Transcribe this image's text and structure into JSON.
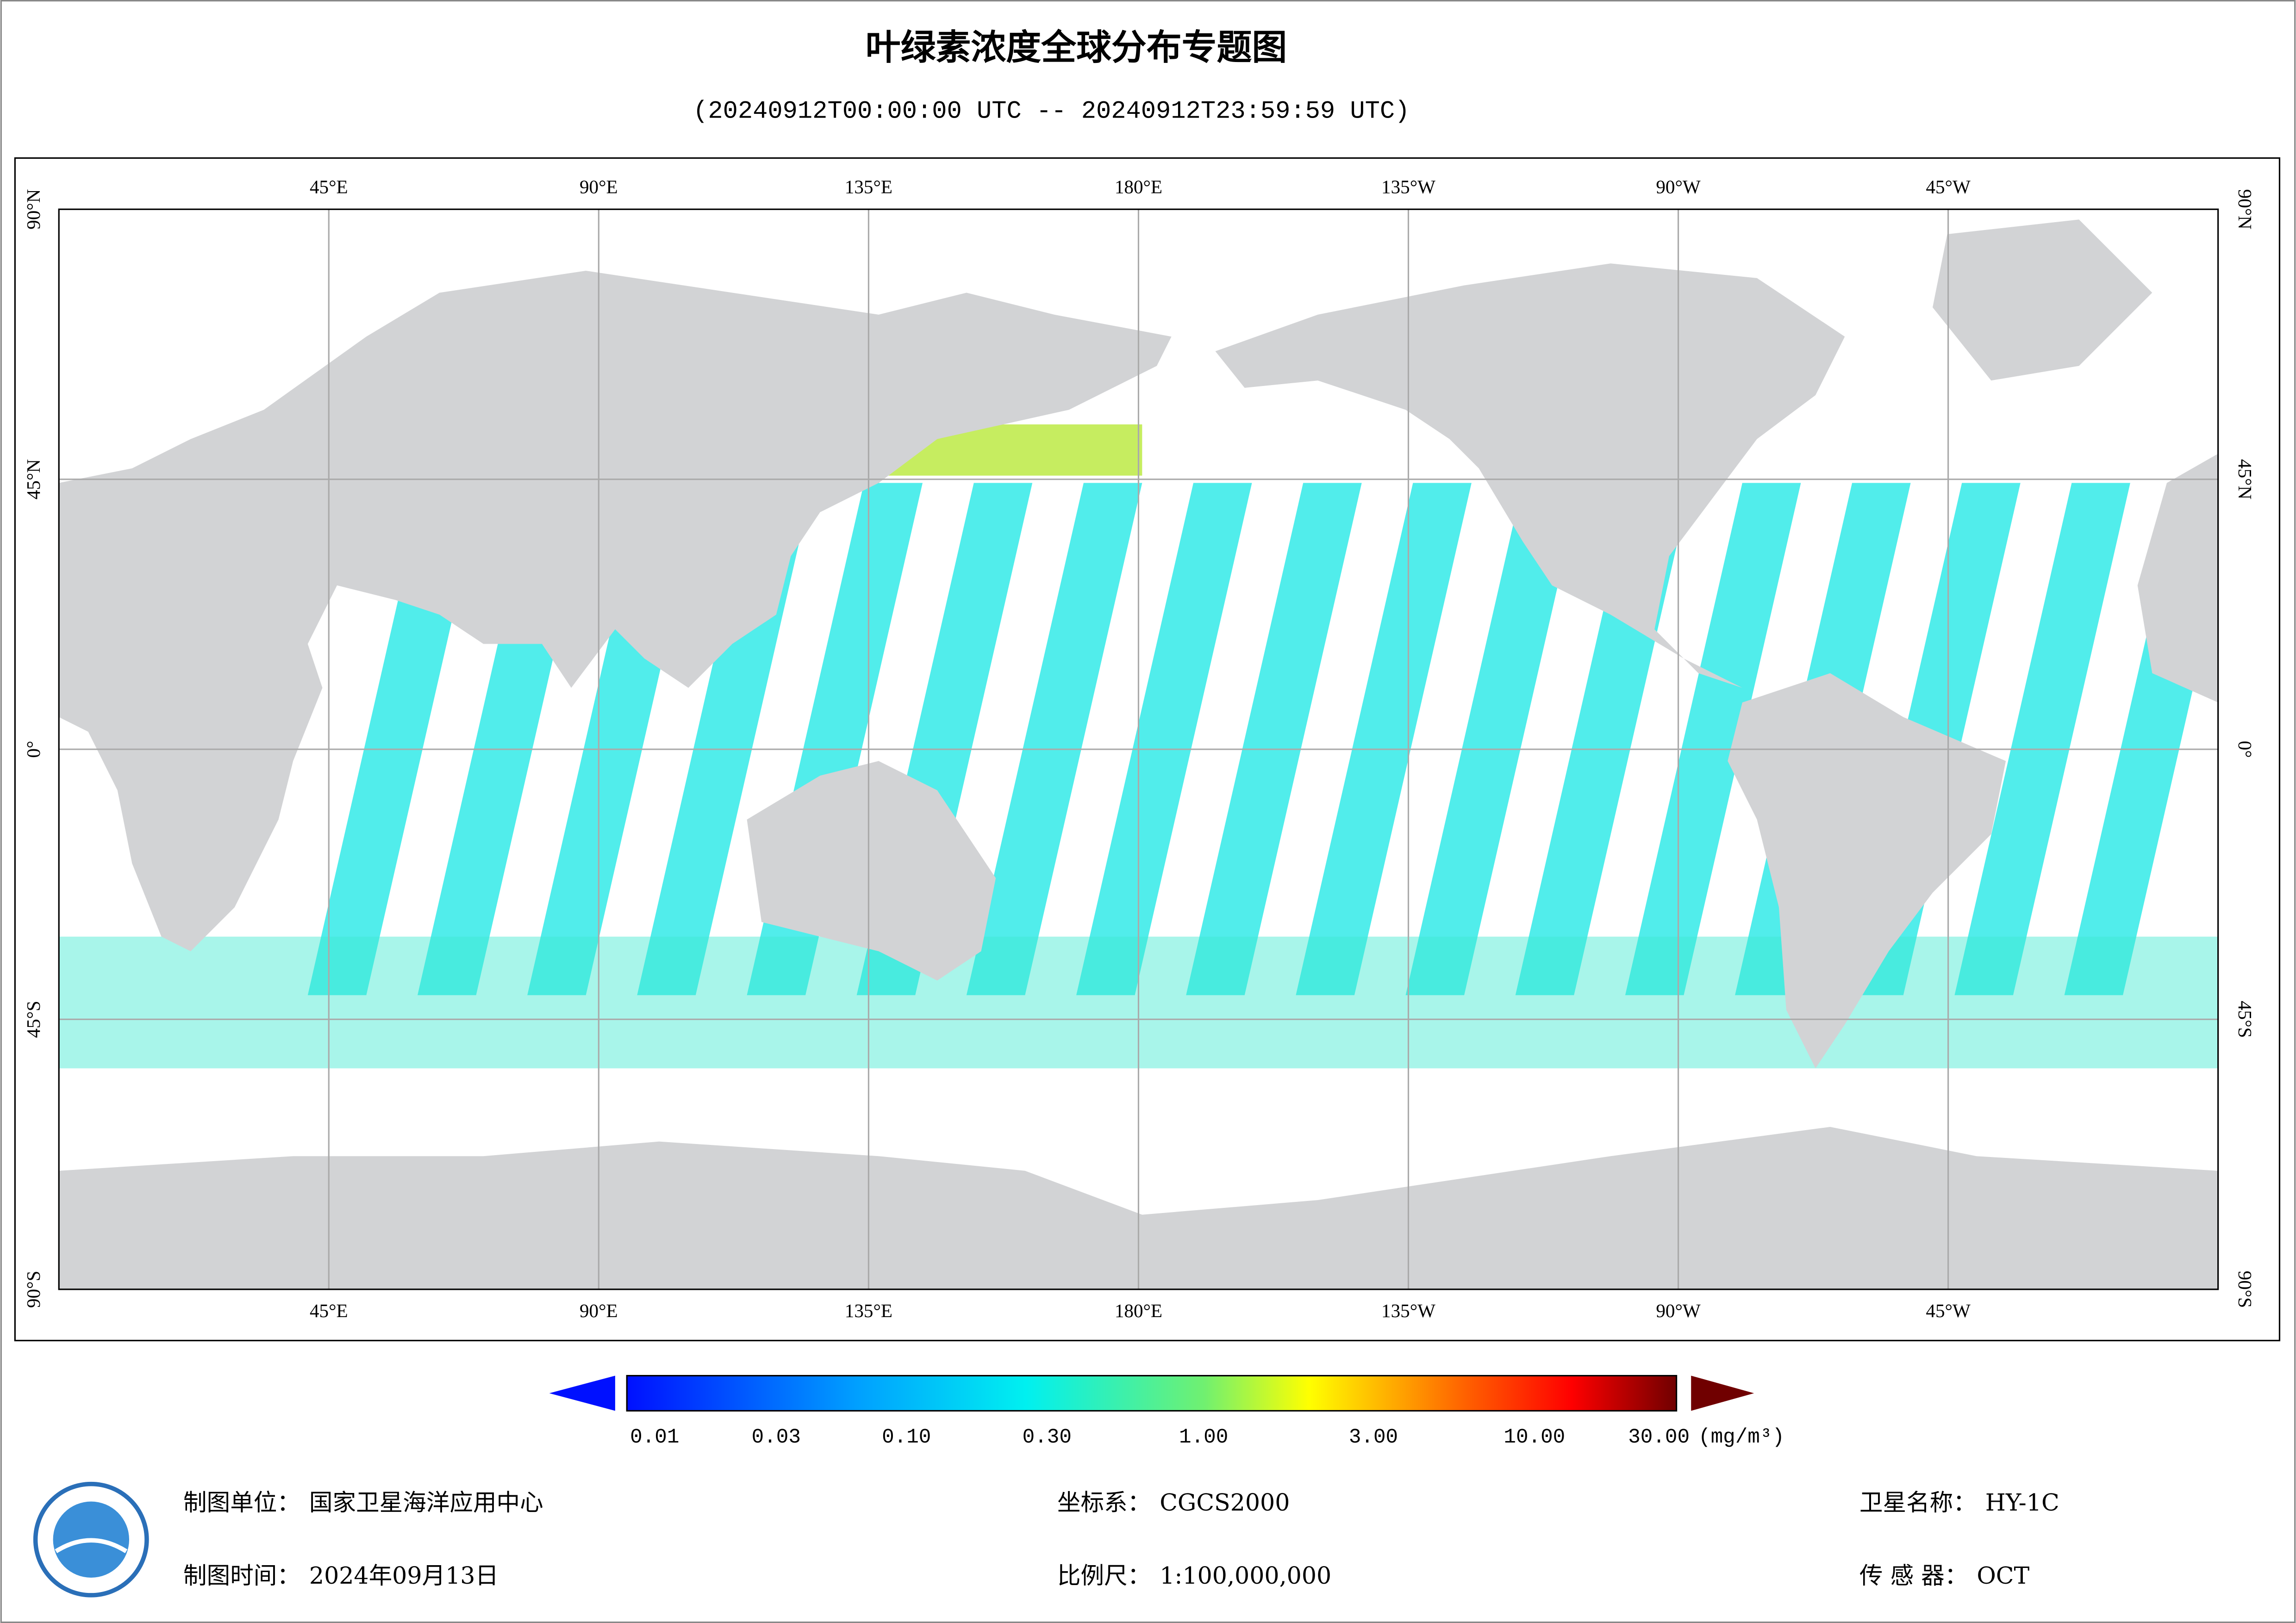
{
  "header": {
    "title": "叶绿素浓度全球分布专题图",
    "subtitle": "(20240912T00:00:00 UTC -- 20240912T23:59:59 UTC)"
  },
  "map": {
    "lon_labels": [
      "45°E",
      "90°E",
      "135°E",
      "180°E",
      "135°W",
      "90°W",
      "45°W"
    ],
    "lat_labels": [
      "90°N",
      "45°N",
      "0°",
      "45°S",
      "90°S"
    ]
  },
  "legend": {
    "labels": [
      "0.01",
      "0.03",
      "0.10",
      "0.30",
      "1.00",
      "3.00",
      "10.00",
      "30.00"
    ],
    "unit": "(mg/m³)"
  },
  "footer": {
    "fields": [
      {
        "label": "制图单位：",
        "value": "国家卫星海洋应用中心"
      },
      {
        "label": "坐标系：",
        "value": "CGCS2000"
      },
      {
        "label": "卫星名称：",
        "value": "HY-1C"
      },
      {
        "label": "制图时间：",
        "value": "2024年09月13日"
      },
      {
        "label": "比例尺：",
        "value": "1:100,000,000"
      },
      {
        "label": "传 感 器：",
        "value": "OCT"
      }
    ]
  }
}
